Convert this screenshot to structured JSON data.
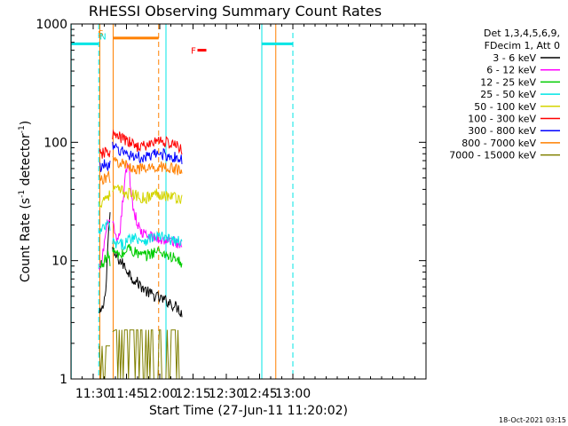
{
  "chart_data": {
    "type": "line",
    "title": "RHESSI Observing Summary Count Rates",
    "xlabel": "Start Time (27-Jun-11 11:20:02)",
    "ylabel_main": "Count Rate (s",
    "ylabel_sup1": "-1",
    "ylabel_mid": " detector",
    "ylabel_sup2": "-1",
    "ylabel_end": ")",
    "y_scale": "log",
    "ylim": [
      1,
      1000
    ],
    "xlim_minutes": [
      20,
      180
    ],
    "x_ticks": [
      {
        "minute": 30,
        "label": "11:30"
      },
      {
        "minute": 45,
        "label": "11:45"
      },
      {
        "minute": 60,
        "label": "12:00"
      },
      {
        "minute": 75,
        "label": "12:15"
      },
      {
        "minute": 90,
        "label": "12:30"
      },
      {
        "minute": 105,
        "label": "12:45"
      },
      {
        "minute": 120,
        "label": "13:00"
      }
    ],
    "y_ticks": [
      {
        "value": 1,
        "label": "1"
      },
      {
        "value": 10,
        "label": "10"
      },
      {
        "value": 100,
        "label": "100"
      },
      {
        "value": 1000,
        "label": "1000"
      }
    ],
    "legend_header": [
      "Det 1,3,4,5,6,9,",
      "FDecim 1, Att 0"
    ],
    "series": [
      {
        "name": "3 - 6 keV",
        "color": "#000000",
        "segments": [
          {
            "x": [
              32.8,
              34,
              35,
              36,
              37,
              37.6
            ],
            "y": [
              3.5,
              3.8,
              4.5,
              7,
              18,
              25
            ]
          },
          {
            "x": [
              38.7,
              40,
              43,
              46,
              48,
              50,
              52,
              54,
              56,
              58,
              60,
              62,
              64,
              65,
              66,
              68,
              70
            ],
            "y": [
              12,
              11,
              9.5,
              8,
              7,
              6.5,
              6,
              5.5,
              5.2,
              5,
              4.8,
              4.6,
              4.5,
              4.4,
              4.2,
              4.0,
              3.6
            ]
          }
        ]
      },
      {
        "name": "6 - 12 keV",
        "color": "#ff00ff",
        "segments": [
          {
            "x": [
              32.8,
              34,
              35,
              36,
              37,
              37.6
            ],
            "y": [
              8,
              10,
              14,
              18,
              24,
              20
            ]
          },
          {
            "x": [
              38.7,
              39.8,
              40.5,
              41.2,
              42,
              43,
              44,
              45,
              46,
              47,
              48,
              50,
              52,
              55,
              58,
              60,
              62,
              64,
              66,
              68,
              70
            ],
            "y": [
              20,
              17,
              14,
              14,
              17,
              26,
              42,
              58,
              64,
              40,
              28,
              20,
              17,
              16,
              15.5,
              15,
              15,
              14.8,
              14.5,
              14,
              13.5
            ]
          }
        ]
      },
      {
        "name": "12 - 25 keV",
        "color": "#00cc00",
        "segments": [
          {
            "x": [
              32.8,
              34,
              35,
              36,
              37,
              37.6
            ],
            "y": [
              8.5,
              9.5,
              10,
              10.5,
              11,
              10
            ]
          },
          {
            "x": [
              38.7,
              40,
              42,
              44,
              46,
              48,
              50,
              52,
              54,
              56,
              58,
              60,
              62,
              64,
              66,
              68,
              70
            ],
            "y": [
              12,
              11.5,
              11,
              11.5,
              13,
              12,
              11.5,
              11,
              11,
              11.5,
              12,
              12,
              11.5,
              11,
              10.5,
              10,
              9.5
            ]
          }
        ]
      },
      {
        "name": "25 - 50 keV",
        "color": "#00e5e5",
        "segments": [
          {
            "x": [
              32.8,
              34,
              35,
              36,
              37,
              37.6
            ],
            "y": [
              17,
              18,
              19,
              20,
              20,
              19
            ]
          },
          {
            "x": [
              38.7,
              40,
              42,
              44,
              46,
              48,
              50,
              52,
              54,
              56,
              58,
              60,
              62,
              64,
              66,
              68,
              70
            ],
            "y": [
              14,
              13.8,
              13.5,
              13.8,
              15,
              16,
              15.5,
              15,
              15,
              15.5,
              16,
              16,
              15.5,
              15,
              15,
              14.5,
              14
            ]
          }
        ]
      },
      {
        "name": "50 - 100 keV",
        "color": "#d4d400",
        "segments": [
          {
            "x": [
              32.8,
              34,
              35,
              36,
              37,
              37.6
            ],
            "y": [
              30,
              32,
              34,
              35,
              36,
              35
            ]
          },
          {
            "x": [
              38.7,
              40,
              42,
              44,
              46,
              48,
              50,
              52,
              54,
              56,
              58,
              60,
              62,
              64,
              66,
              68,
              70
            ],
            "y": [
              40,
              40,
              39,
              38,
              37,
              36,
              35,
              34,
              34,
              35,
              37,
              37,
              36,
              35,
              35,
              34,
              33
            ]
          }
        ]
      },
      {
        "name": "100 - 300 keV",
        "color": "#ff0000",
        "segments": [
          {
            "x": [
              32.8,
              34,
              35,
              36,
              37,
              37.6
            ],
            "y": [
              78,
              80,
              81,
              82,
              83,
              82
            ]
          },
          {
            "x": [
              38.7,
              40,
              42,
              44,
              46,
              48,
              50,
              52,
              54,
              56,
              58,
              60,
              62,
              64,
              66,
              68,
              70
            ],
            "y": [
              115,
              113,
              110,
              105,
              100,
              96,
              93,
              92,
              93,
              97,
              102,
              104,
              102,
              98,
              95,
              92,
              88
            ]
          }
        ]
      },
      {
        "name": "300 - 800 keV",
        "color": "#0000ff",
        "segments": [
          {
            "x": [
              32.8,
              34,
              35,
              36,
              37,
              37.6
            ],
            "y": [
              62,
              63,
              64,
              65,
              65,
              64
            ]
          },
          {
            "x": [
              38.7,
              40,
              42,
              44,
              46,
              48,
              50,
              52,
              54,
              56,
              58,
              60,
              62,
              64,
              66,
              68,
              70
            ],
            "y": [
              90,
              88,
              85,
              82,
              79,
              77,
              75,
              74,
              74,
              76,
              79,
              80,
              79,
              77,
              75,
              73,
              70
            ]
          }
        ]
      },
      {
        "name": "800 - 7000 keV",
        "color": "#ff8000",
        "segments": [
          {
            "x": [
              32.8,
              34,
              35,
              36,
              37,
              37.6
            ],
            "y": [
              48,
              49,
              50,
              51,
              51,
              50
            ]
          },
          {
            "x": [
              38.7,
              40,
              42,
              44,
              46,
              48,
              50,
              52,
              54,
              56,
              58,
              60,
              62,
              64,
              66,
              68,
              70
            ],
            "y": [
              70,
              69,
              67,
              65,
              63,
              61,
              60,
              59,
              59,
              60,
              62,
              63,
              62,
              61,
              60,
              58,
              56
            ]
          }
        ]
      },
      {
        "name": "7000 - 15000 keV",
        "color": "#808000",
        "segments": [
          {
            "x": [
              32.8,
              34,
              35,
              36,
              37,
              37.6
            ],
            "y": [
              1.9,
              1.9,
              1.9,
              1.9,
              1.9,
              1.9
            ]
          },
          {
            "x": [
              38.7,
              40,
              42,
              44,
              46,
              48,
              50,
              52,
              54,
              56,
              58,
              60,
              62,
              64,
              66,
              68,
              70
            ],
            "y": [
              2.5,
              2.6,
              2.6,
              2.6,
              2.6,
              2.6,
              2.6,
              2.6,
              2.6,
              2.6,
              2.6,
              2.6,
              2.6,
              2.6,
              2.6,
              2.6,
              2.5
            ]
          }
        ]
      }
    ],
    "flags": [
      {
        "name": "night-segments",
        "color": "#00e5e5",
        "y": 680,
        "segments": [
          [
            20,
            32.5
          ],
          [
            106,
            120
          ]
        ]
      },
      {
        "name": "saa-segment",
        "color": "#ff8000",
        "y": 760,
        "segments": [
          [
            39,
            59.5
          ]
        ]
      },
      {
        "name": "flare-segment",
        "color": "#ff0000",
        "y": 600,
        "segments": [
          [
            77,
            81
          ]
        ]
      }
    ],
    "markers": [
      {
        "label": "S",
        "color": "#ff8000",
        "x_minute": 33.4,
        "y_value": 840
      },
      {
        "label": "N",
        "color": "#00e5e5",
        "x_minute": 34.4,
        "y_value": 790
      },
      {
        "label": "F",
        "color": "#ff0000",
        "x_minute": 75.2,
        "y_value": 600
      }
    ],
    "vlines": [
      {
        "x": 20.1,
        "color": "#00e5e5",
        "dashed": false
      },
      {
        "x": 32.5,
        "color": "#00e5e5",
        "dashed": true
      },
      {
        "x": 33.0,
        "color": "#ff8000",
        "dashed": false
      },
      {
        "x": 39.0,
        "color": "#ff8000",
        "dashed": false
      },
      {
        "x": 59.5,
        "color": "#ff8000",
        "dashed": true
      },
      {
        "x": 62.8,
        "color": "#00e5e5",
        "dashed": false
      },
      {
        "x": 106.0,
        "color": "#00e5e5",
        "dashed": false
      },
      {
        "x": 112.3,
        "color": "#ff8000",
        "dashed": false
      },
      {
        "x": 120.0,
        "color": "#00e5e5",
        "dashed": true
      }
    ]
  },
  "footer": {
    "timestamp": "18-Oct-2021 03:15"
  }
}
